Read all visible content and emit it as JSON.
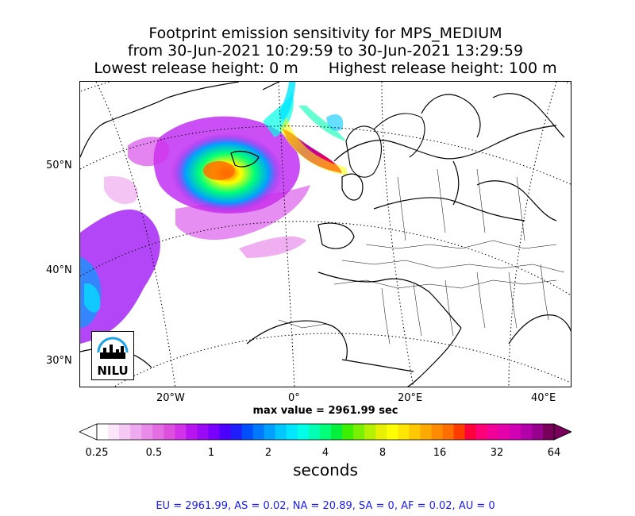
{
  "title": {
    "line1": "Footprint emission sensitivity for MPS_MEDIUM",
    "line2": "from 30-Jun-2021 10:29:59 to 30-Jun-2021 13:29:59",
    "line3_left": "Lowest release height: 0 m",
    "line3_right": "Highest release height: 100 m"
  },
  "map": {
    "lat_labels": [
      "50°N",
      "40°N",
      "30°N"
    ],
    "lon_labels": [
      "20°W",
      "0°",
      "20°E",
      "40°E"
    ]
  },
  "logo": {
    "text": "NILU"
  },
  "max_value": "max value = 2961.99 sec",
  "colorbar": {
    "ticks": [
      "0.25",
      "0.5",
      "1",
      "2",
      "4",
      "8",
      "16",
      "32",
      "64"
    ],
    "unit": "seconds",
    "colors": [
      "#ffffff",
      "#fbe6fb",
      "#f5c8f5",
      "#efaaef",
      "#e98ce9",
      "#e36ee3",
      "#dd50dd",
      "#d232e8",
      "#b814f0",
      "#9a0af5",
      "#7a00ff",
      "#4c00ff",
      "#1e1eff",
      "#0050ff",
      "#0078ff",
      "#00a0ff",
      "#00c8ff",
      "#00e6ff",
      "#00ffe6",
      "#00ffb4",
      "#00ff78",
      "#00f03c",
      "#3cf000",
      "#78f000",
      "#b4f000",
      "#e6f000",
      "#ffff00",
      "#ffe600",
      "#ffc800",
      "#ffaa00",
      "#ff8c00",
      "#ff6e00",
      "#ff3c00",
      "#ff003c",
      "#ff0078",
      "#f00096",
      "#e600aa",
      "#d200b4",
      "#b400aa",
      "#96008c",
      "#78005a"
    ]
  },
  "stats": "EU = 2961.99,  AS = 0.02,  NA = 20.89,  SA = 0,  AF = 0.02,  AU = 0"
}
